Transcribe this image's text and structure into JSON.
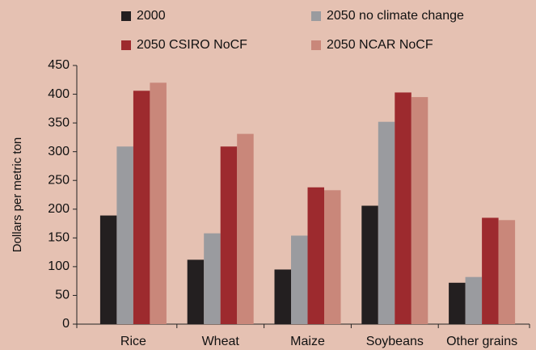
{
  "chart_data": {
    "type": "bar",
    "y_label": "Dollars per metric ton",
    "categories": [
      "Rice",
      "Wheat",
      "Maize",
      "Soybeans",
      "Other grains"
    ],
    "series": [
      {
        "name": "2000",
        "color": "#231f20",
        "values": [
          189,
          112,
          95,
          206,
          72
        ]
      },
      {
        "name": "2050 no climate change",
        "color": "#9a9b9f",
        "values": [
          309,
          158,
          154,
          352,
          82
        ]
      },
      {
        "name": "2050 CSIRO NoCF",
        "color": "#9d2a2e",
        "values": [
          406,
          309,
          238,
          403,
          185
        ]
      },
      {
        "name": "2050 NCAR NoCF",
        "color": "#c9877a",
        "values": [
          420,
          331,
          233,
          395,
          181
        ]
      }
    ],
    "ylim": [
      0,
      450
    ],
    "yticks": [
      0,
      50,
      100,
      150,
      200,
      250,
      300,
      350,
      400,
      450
    ],
    "grid": false
  }
}
